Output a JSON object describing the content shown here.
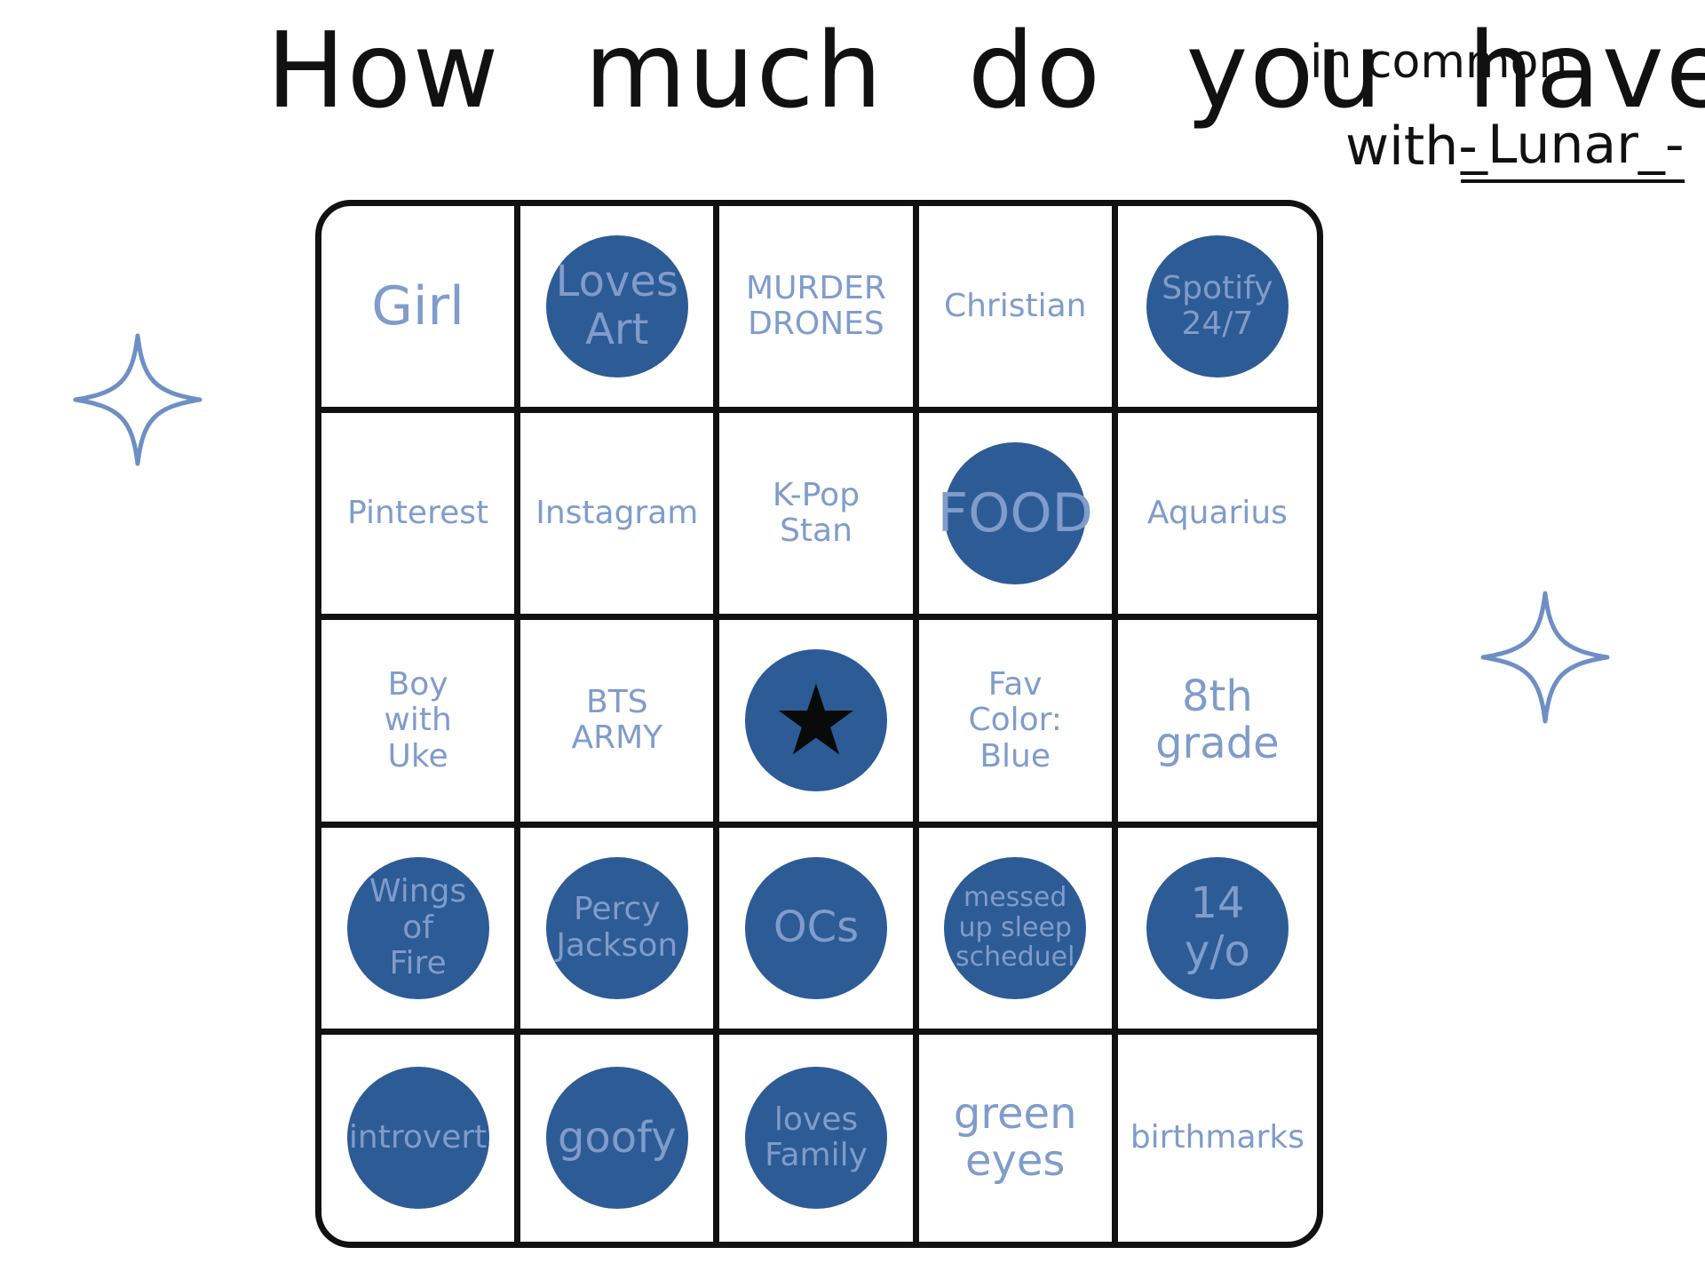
{
  "title": {
    "main": "How much do you have",
    "small": "in common",
    "with": "with-",
    "name": "_Lunar_-"
  },
  "colors": {
    "ink": "#111111",
    "label": "#7f9ccb",
    "marker": "#2d5b96",
    "sparkle": "#6e8fc4"
  },
  "icons": {
    "sparkle": "four-point-sparkle-icon",
    "free_space": "star-icon"
  },
  "board": {
    "free_space_symbol": "★",
    "cells": [
      {
        "label": "Girl",
        "marked": false,
        "size": "big"
      },
      {
        "label": "Loves\nArt",
        "marked": true,
        "size": ""
      },
      {
        "label": "MURDER\nDRONES",
        "marked": false,
        "size": "small"
      },
      {
        "label": "Christian",
        "marked": false,
        "size": "small"
      },
      {
        "label": "Spotify\n24/7",
        "marked": true,
        "size": "small"
      },
      {
        "label": "Pinterest",
        "marked": false,
        "size": "small"
      },
      {
        "label": "Instagram",
        "marked": false,
        "size": "small"
      },
      {
        "label": "K-Pop\nStan",
        "marked": false,
        "size": "small"
      },
      {
        "label": "FOOD",
        "marked": true,
        "size": "big"
      },
      {
        "label": "Aquarius",
        "marked": false,
        "size": "small"
      },
      {
        "label": "Boy\nwith\nUke",
        "marked": false,
        "size": "small"
      },
      {
        "label": "BTS\nARMY",
        "marked": false,
        "size": "small"
      },
      {
        "label": "",
        "marked": true,
        "size": "",
        "free": true
      },
      {
        "label": "Fav\nColor:\nBlue",
        "marked": false,
        "size": "small"
      },
      {
        "label": "8th\ngrade",
        "marked": false,
        "size": ""
      },
      {
        "label": "Wings\nof\nFire",
        "marked": true,
        "size": "small"
      },
      {
        "label": "Percy\nJackson",
        "marked": true,
        "size": "small"
      },
      {
        "label": "OCs",
        "marked": true,
        "size": ""
      },
      {
        "label": "messed\nup sleep\nscheduel",
        "marked": true,
        "size": "xsmall"
      },
      {
        "label": "14\ny/o",
        "marked": true,
        "size": ""
      },
      {
        "label": "introvert",
        "marked": true,
        "size": "small"
      },
      {
        "label": "goofy",
        "marked": true,
        "size": ""
      },
      {
        "label": "loves\nFamily",
        "marked": true,
        "size": "small"
      },
      {
        "label": "green\neyes",
        "marked": false,
        "size": ""
      },
      {
        "label": "birthmarks",
        "marked": false,
        "size": "small"
      }
    ]
  }
}
